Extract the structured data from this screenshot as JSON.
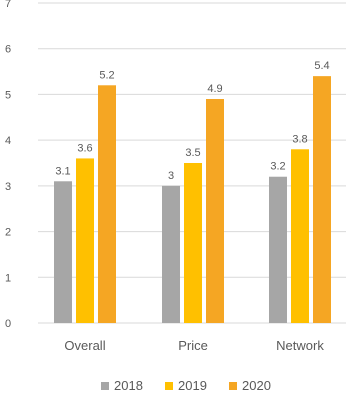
{
  "chart_data": {
    "type": "bar",
    "title": "",
    "xlabel": "",
    "ylabel": "",
    "categories": [
      "Overall",
      "Price",
      "Network"
    ],
    "series": [
      {
        "name": "2018",
        "values": [
          3.1,
          3,
          3.2
        ],
        "color": "#a6a6a6"
      },
      {
        "name": "2019",
        "values": [
          3.6,
          3.5,
          3.8
        ],
        "color": "#ffc000"
      },
      {
        "name": "2020",
        "values": [
          5.2,
          4.9,
          5.4
        ],
        "color": "#f5a623"
      }
    ],
    "ylim": [
      0,
      7
    ],
    "yticks": [
      "0",
      "1",
      "2",
      "3",
      "4",
      "5",
      "6",
      "7"
    ],
    "data_labels": [
      [
        "3.1",
        "3",
        "3.2"
      ],
      [
        "3.6",
        "3.5",
        "3.8"
      ],
      [
        "5.2",
        "4.9",
        "5.4"
      ]
    ],
    "grid": true,
    "legend_position": "bottom",
    "gridline_color": "#d9d9d9",
    "text_color": "#595959"
  }
}
